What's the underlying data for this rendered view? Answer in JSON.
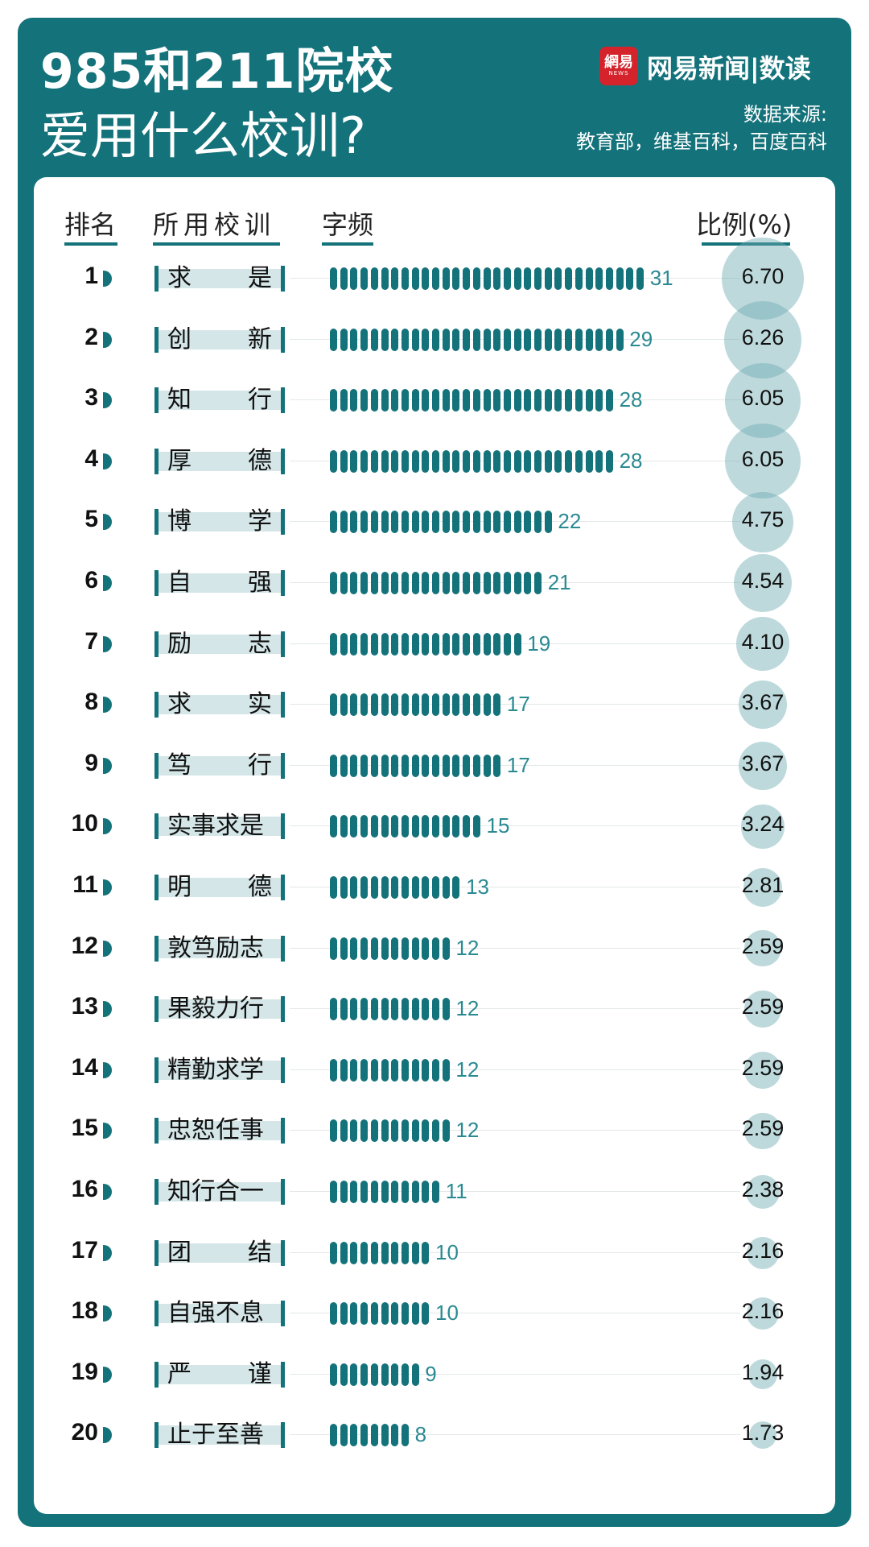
{
  "header": {
    "title_line1": "985和211院校",
    "title_line2": "爱用什么校训?",
    "brand_logo_text": "網易",
    "brand_logo_sub": "NEWS",
    "brand_name": "网易新闻|数读",
    "source_label": "数据来源:",
    "source_text": "教育部，维基百科，百度百科"
  },
  "columns": {
    "rank": "排名",
    "motto": "所用校训",
    "freq": "字频",
    "pct": "比例(%)"
  },
  "colors": {
    "teal": "#14727a",
    "light_teal": "#d5e6e8",
    "circle": "#6caab1"
  },
  "chart_data": {
    "type": "bar",
    "title": "985和211院校爱用什么校训?",
    "categories": [
      "求是",
      "创新",
      "知行",
      "厚德",
      "博学",
      "自强",
      "励志",
      "求实",
      "笃行",
      "实事求是",
      "明德",
      "敦笃励志",
      "果毅力行",
      "精勤求学",
      "忠恕任事",
      "知行合一",
      "团结",
      "自强不息",
      "严谨",
      "止于至善"
    ],
    "series": [
      {
        "name": "字频",
        "values": [
          31,
          29,
          28,
          28,
          22,
          21,
          19,
          17,
          17,
          15,
          13,
          12,
          12,
          12,
          12,
          11,
          10,
          10,
          9,
          8
        ]
      },
      {
        "name": "比例(%)",
        "values": [
          "6.70",
          "6.26",
          "6.05",
          "6.05",
          "4.75",
          "4.54",
          "4.10",
          "3.67",
          "3.67",
          "3.24",
          "2.81",
          "2.59",
          "2.59",
          "2.59",
          "2.59",
          "2.38",
          "2.16",
          "2.16",
          "1.94",
          "1.73"
        ]
      }
    ],
    "ranks": [
      "1",
      "2",
      "3",
      "4",
      "5",
      "6",
      "7",
      "8",
      "9",
      "10",
      "11",
      "12",
      "13",
      "14",
      "15",
      "16",
      "17",
      "18",
      "19",
      "20"
    ],
    "rows": [
      {
        "rank": "1",
        "motto": [
          "求",
          "是"
        ]
      },
      {
        "rank": "2",
        "motto": [
          "创",
          "新"
        ]
      },
      {
        "rank": "3",
        "motto": [
          "知",
          "行"
        ]
      },
      {
        "rank": "4",
        "motto": [
          "厚",
          "德"
        ]
      },
      {
        "rank": "5",
        "motto": [
          "博",
          "学"
        ]
      },
      {
        "rank": "6",
        "motto": [
          "自",
          "强"
        ]
      },
      {
        "rank": "7",
        "motto": [
          "励",
          "志"
        ]
      },
      {
        "rank": "8",
        "motto": [
          "求",
          "实"
        ]
      },
      {
        "rank": "9",
        "motto": [
          "笃",
          "行"
        ]
      },
      {
        "rank": "10",
        "motto": [
          "实事求是"
        ]
      },
      {
        "rank": "11",
        "motto": [
          "明",
          "德"
        ]
      },
      {
        "rank": "12",
        "motto": [
          "敦笃励志"
        ]
      },
      {
        "rank": "13",
        "motto": [
          "果毅力行"
        ]
      },
      {
        "rank": "14",
        "motto": [
          "精勤求学"
        ]
      },
      {
        "rank": "15",
        "motto": [
          "忠恕任事"
        ]
      },
      {
        "rank": "16",
        "motto": [
          "知行合一"
        ]
      },
      {
        "rank": "17",
        "motto": [
          "团",
          "结"
        ]
      },
      {
        "rank": "18",
        "motto": [
          "自强不息"
        ]
      },
      {
        "rank": "19",
        "motto": [
          "严",
          "谨"
        ]
      },
      {
        "rank": "20",
        "motto": [
          "止于至善"
        ]
      }
    ]
  }
}
